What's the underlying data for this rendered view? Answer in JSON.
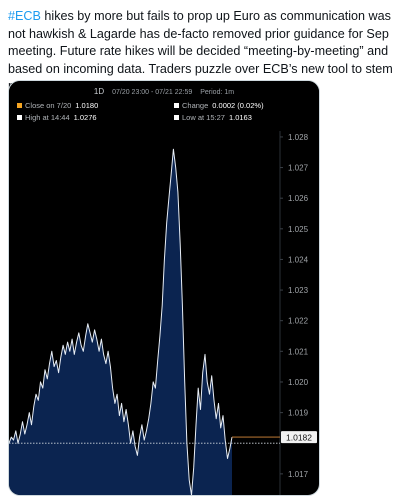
{
  "tweet": {
    "header_fragment": "",
    "hashtag": "#ECB",
    "body_rest": "hikes by more but fails to prop up Euro as communication was not hawkish & Lagarde has de-facto removed prior guidance for Sep meeting. Future rate hikes will be decided “meeting-by-meeting” and based on incoming data. Traders puzzle over ECB’s new tool to stem market stress"
  },
  "card": {
    "timeframe": "1D",
    "range": "07/20 23:00 - 07/21 22:59",
    "period": "Period: 1m",
    "stats": [
      {
        "label": "Close on 7/20",
        "value": "1.0180",
        "color": "#f5a623"
      },
      {
        "label": "Change",
        "value": "0.0002 (0.02%)",
        "color": "#ffffff"
      },
      {
        "label": "High at 14:44",
        "value": "1.0276",
        "color": "#ffffff"
      },
      {
        "label": "Low at 15:27",
        "value": "1.0163",
        "color": "#ffffff"
      }
    ]
  },
  "colors": {
    "area_fill": "#0b2450",
    "line": "#e8eef6",
    "ref_line": "#cfd6dd",
    "last_marker": "#d98a3c"
  },
  "chart_data": {
    "type": "area",
    "y_ticks": [
      "1.028",
      "1.027",
      "1.026",
      "1.025",
      "1.024",
      "1.023",
      "1.022",
      "1.021",
      "1.020",
      "1.019",
      "1.018",
      "1.017"
    ],
    "ylim": [
      1.0163,
      1.0283
    ],
    "previous_close": 1.018,
    "last_value": 1.0182,
    "last_label": "1.0182",
    "values": [
      1.018,
      1.0182,
      1.0181,
      1.0184,
      1.018,
      1.0183,
      1.0187,
      1.0183,
      1.0186,
      1.019,
      1.0186,
      1.0192,
      1.0196,
      1.0194,
      1.02,
      1.0198,
      1.0204,
      1.0201,
      1.0206,
      1.021,
      1.0205,
      1.0207,
      1.0203,
      1.0208,
      1.0212,
      1.0209,
      1.0213,
      1.021,
      1.0214,
      1.0209,
      1.0213,
      1.0216,
      1.0212,
      1.021,
      1.0215,
      1.0219,
      1.0216,
      1.0213,
      1.0217,
      1.0214,
      1.021,
      1.0214,
      1.0209,
      1.0206,
      1.021,
      1.0205,
      1.0198,
      1.0193,
      1.0196,
      1.0189,
      1.0193,
      1.0187,
      1.0191,
      1.0186,
      1.018,
      1.0184,
      1.0179,
      1.0176,
      1.0182,
      1.0186,
      1.0181,
      1.0184,
      1.0188,
      1.0193,
      1.02,
      1.0198,
      1.0207,
      1.0215,
      1.0225,
      1.024,
      1.0252,
      1.026,
      1.0268,
      1.0276,
      1.027,
      1.0262,
      1.0245,
      1.0225,
      1.02,
      1.018,
      1.0168,
      1.0163,
      1.0172,
      1.0186,
      1.0198,
      1.0191,
      1.0203,
      1.0209,
      1.02,
      1.0196,
      1.0202,
      1.0194,
      1.0188,
      1.0193,
      1.0185,
      1.0189,
      1.0181,
      1.0175,
      1.0178,
      1.0182
    ]
  }
}
